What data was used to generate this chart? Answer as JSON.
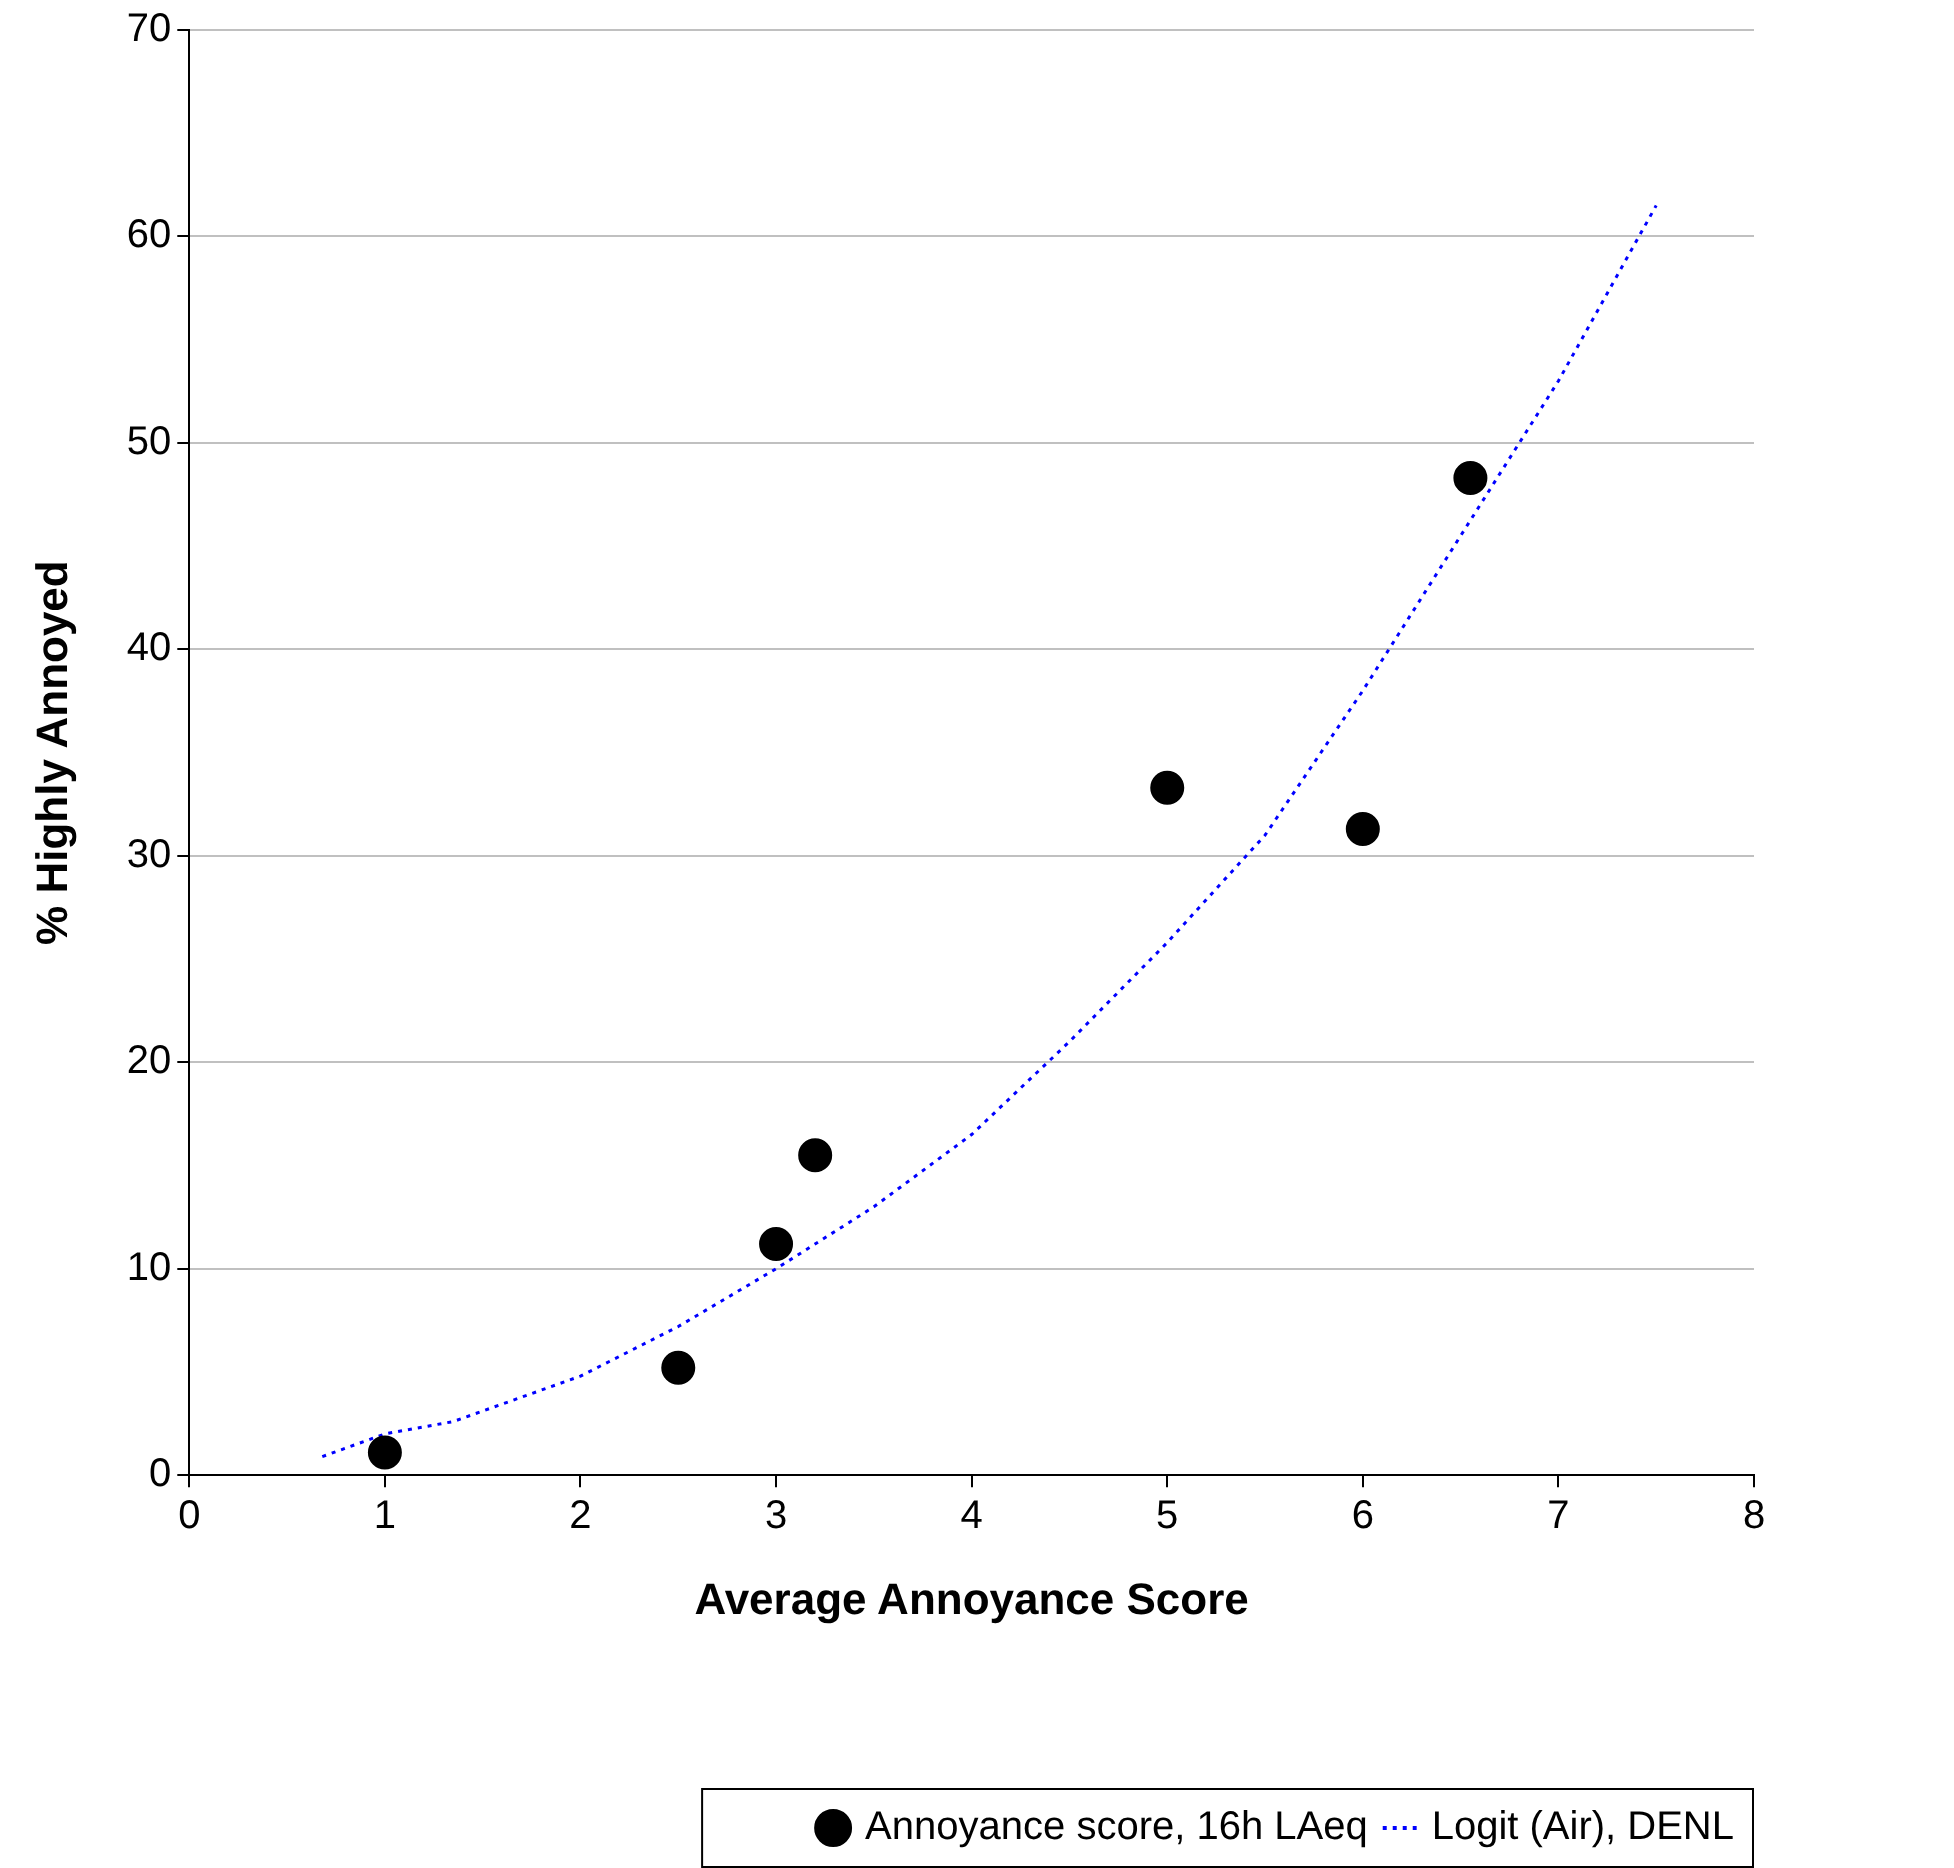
{
  "chart_data": {
    "type": "scatter",
    "xlabel": "Average Annoyance Score",
    "ylabel": "% Highly Annoyed",
    "xlim": [
      0,
      8
    ],
    "xticks": [
      0,
      1,
      2,
      3,
      4,
      5,
      6,
      7,
      8
    ],
    "ylim": [
      0,
      70
    ],
    "yticks": [
      0,
      10,
      20,
      30,
      40,
      50,
      60,
      70
    ],
    "grid": "y",
    "legend": "bottom",
    "series": [
      {
        "name": "Annoyance score, 16h LAeq",
        "color": "#000000",
        "marker": "circle",
        "x": [
          1,
          2.5,
          3,
          3.2,
          5,
          6,
          6.55
        ],
        "values": [
          1.1,
          5.2,
          11.2,
          15.5,
          33.3,
          31.3,
          48.3
        ]
      },
      {
        "name": "Logit (Air), DENL",
        "type": "line",
        "color": "#0000ff",
        "marker": "none",
        "line_style": "dotted",
        "x": [
          0.68,
          1,
          1.35,
          2,
          2.5,
          3,
          3.5,
          4,
          4.5,
          5,
          5.5,
          6,
          6.5,
          7,
          7.5
        ],
        "values": [
          0.9,
          2,
          2.6,
          4.8,
          7.2,
          10,
          13,
          16.5,
          21,
          25.8,
          31,
          38,
          45.5,
          53,
          61.5
        ]
      }
    ]
  }
}
